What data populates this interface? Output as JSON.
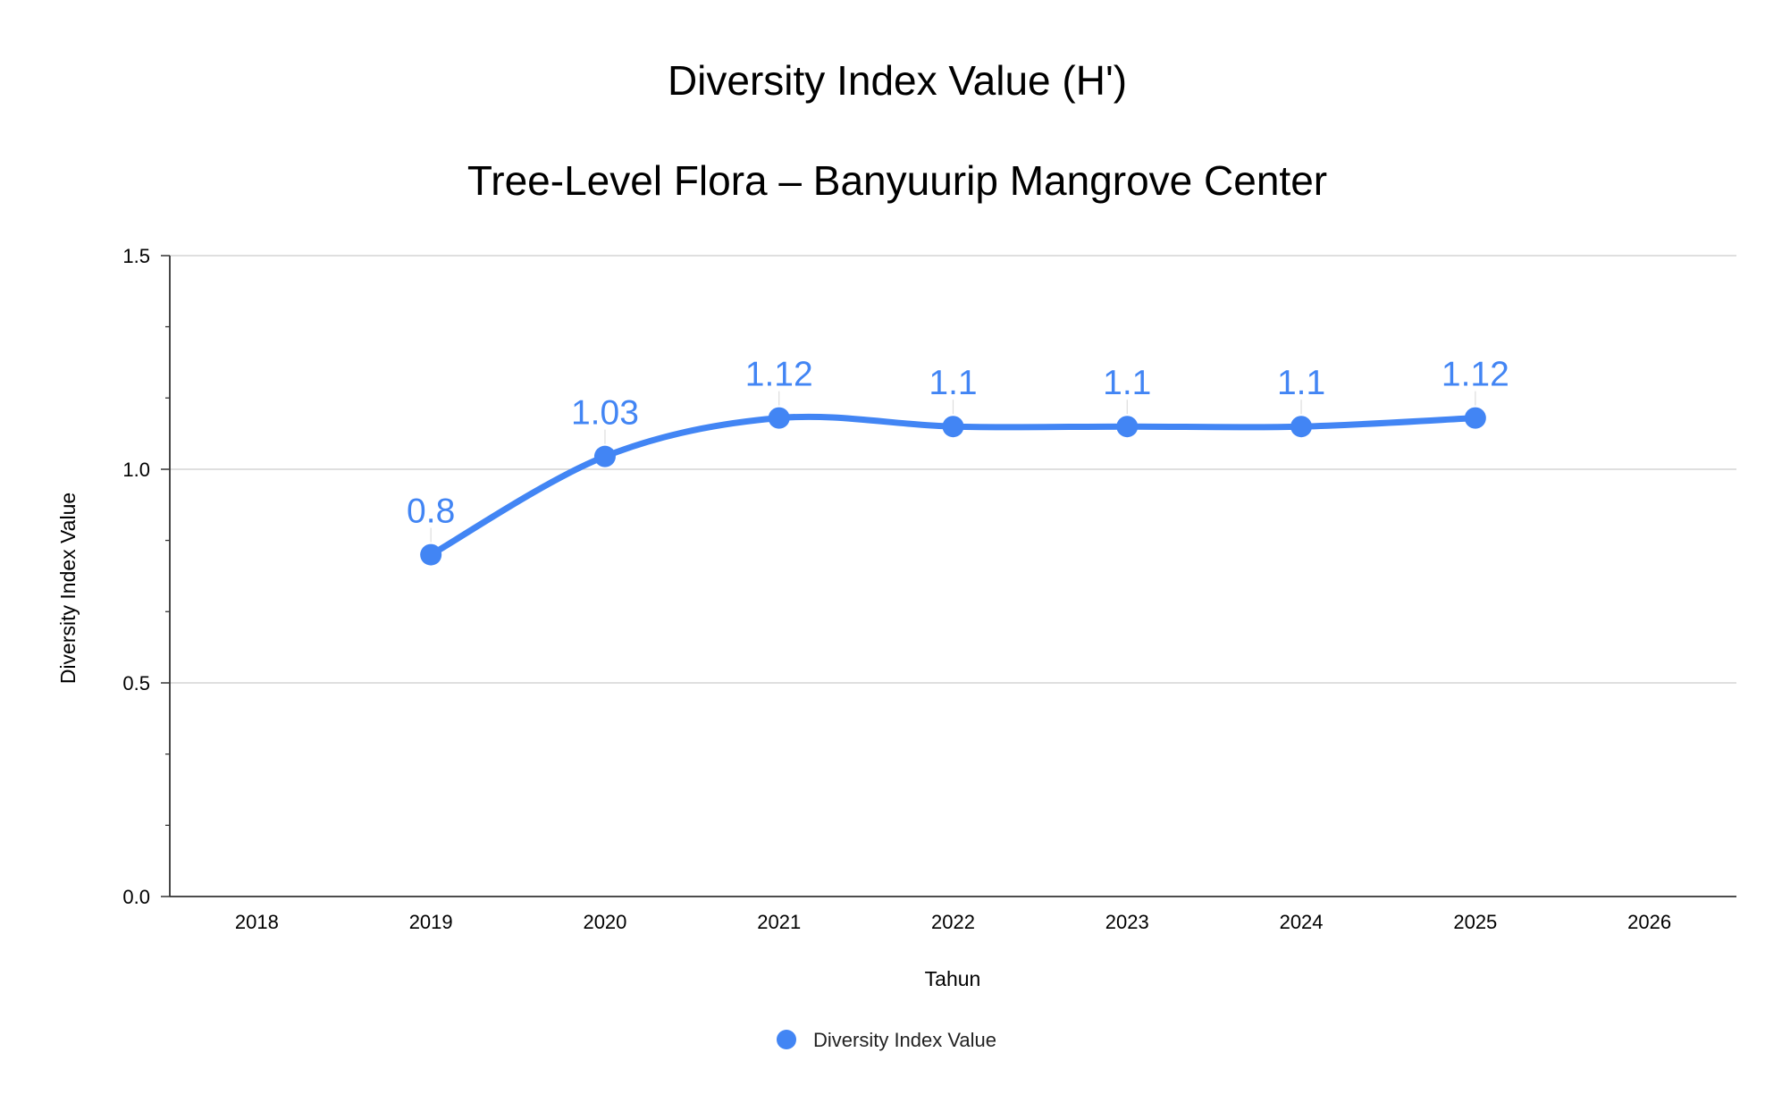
{
  "chart_data": {
    "type": "line",
    "title": "Diversity Index Value (H')",
    "subtitle": "Tree-Level Flora – Banyuurip Mangrove Center",
    "xlabel": "Tahun",
    "ylabel": "Diversity Index Value",
    "x_ticks": [
      "2018",
      "2019",
      "2020",
      "2021",
      "2022",
      "2023",
      "2024",
      "2025",
      "2026"
    ],
    "xlim": [
      2017.5,
      2026.5
    ],
    "y_ticks": [
      "0.0",
      "0.5",
      "1.0",
      "1.5"
    ],
    "ylim": [
      0,
      1.5
    ],
    "y_minor_step": 0.1667,
    "grid": "horizontal",
    "smooth": true,
    "legend_position": "bottom-center",
    "series": [
      {
        "name": "Diversity Index Value",
        "color": "#4285f4",
        "x": [
          2019,
          2020,
          2021,
          2022,
          2023,
          2024,
          2025
        ],
        "values": [
          0.8,
          1.03,
          1.12,
          1.1,
          1.1,
          1.1,
          1.12
        ],
        "labels": [
          "0.8",
          "1.03",
          "1.12",
          "1.1",
          "1.1",
          "1.1",
          "1.12"
        ]
      }
    ]
  }
}
